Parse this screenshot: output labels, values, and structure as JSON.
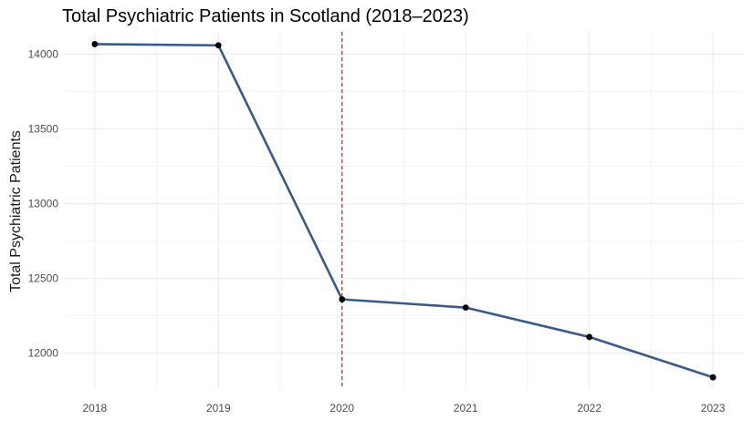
{
  "chart_data": {
    "type": "line",
    "title": "Total Psychiatric Patients in Scotland (2018–2023)",
    "xlabel": "",
    "ylabel": "Total Psychiatric Patients",
    "x": [
      2018,
      2019,
      2020,
      2021,
      2022,
      2023
    ],
    "series": [
      {
        "values": [
          14068,
          14060,
          12360,
          12305,
          12108,
          11838
        ]
      }
    ],
    "x_ticks": [
      "2018",
      "2019",
      "2020",
      "2021",
      "2022",
      "2023"
    ],
    "y_ticks": [
      "12000",
      "12500",
      "13000",
      "13500",
      "14000"
    ],
    "xlim": [
      2017.75,
      2023.25
    ],
    "ylim": [
      11760,
      14150
    ],
    "reference_line": {
      "x": 2020,
      "style": "dashed"
    },
    "grid": true,
    "legend": "none",
    "colors": {
      "line": "#3a5a8c",
      "point": "#000000",
      "vline": "#a52a2a",
      "grid": "#ebebeb"
    }
  }
}
